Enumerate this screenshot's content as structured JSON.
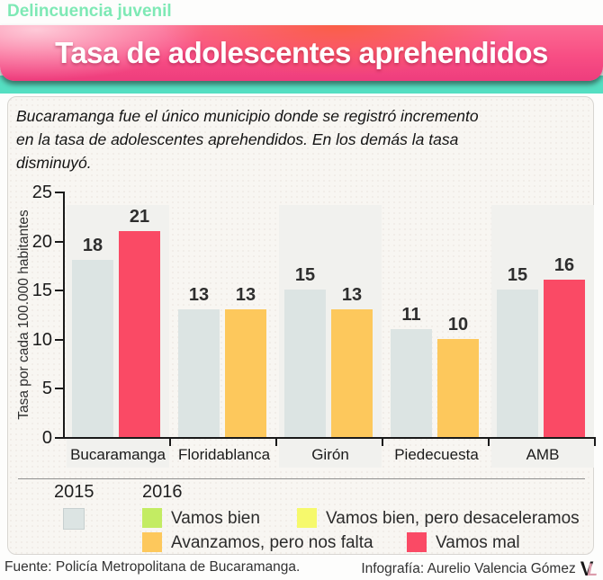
{
  "kicker": "Delincuencia juvenil",
  "title": "Tasa de adolescentes aprehendidos",
  "description_lines": [
    "Bucaramanga fue el único municipio donde se registró incremento",
    "en la tasa de adolescentes aprehendidos. En los demás la tasa",
    "disminuyó."
  ],
  "chart_data": {
    "type": "bar",
    "categories": [
      "Bucaramanga",
      "Floridablanca",
      "Girón",
      "Piedecuesta",
      "AMB"
    ],
    "series": [
      {
        "name": "2015",
        "values": [
          18,
          13,
          15,
          11,
          15
        ],
        "color": "#dce4e3"
      },
      {
        "name": "2016",
        "values": [
          21,
          13,
          13,
          10,
          16
        ],
        "colors": [
          "#fa4a65",
          "#fdc85c",
          "#fdc85c",
          "#fdc85c",
          "#fa4a65"
        ]
      }
    ],
    "ylabel": "Tasa por cada 100.000 habitantes",
    "yticks": [
      0,
      5,
      10,
      15,
      20,
      25
    ],
    "ylim": [
      0,
      25
    ],
    "grid": false,
    "highlight_panel_groups": [
      0,
      2,
      4
    ],
    "legend_position": "bottom"
  },
  "legend": {
    "year_2015": "2015",
    "year_2016": "2016",
    "items": [
      {
        "label": "",
        "color": "#dce4e3",
        "border": "#c7d0d0"
      },
      {
        "label": "Vamos bien",
        "color": "#c3ec63"
      },
      {
        "label": "Vamos bien, pero desaceleramos",
        "color": "#f6f96c"
      },
      {
        "label": "Avanzamos, pero nos falta",
        "color": "#fdc85c"
      },
      {
        "label": "Vamos mal",
        "color": "#fa4a65"
      }
    ]
  },
  "footer": {
    "source": "Fuente: Policía Metropolitana de Bucaramanga.",
    "credit": "Infografía: Aurelio Valencia Gómez",
    "logo_v": "V",
    "logo_l": "L"
  },
  "colors": {
    "kicker": "#7ee9b5",
    "banner_pink": "#f84e84",
    "teal_strip": "#55dfc2",
    "bar_2015": "#dce4e3",
    "bar_red": "#fa4a65",
    "bar_orange": "#fdc85c",
    "axis": "#1a1a1a",
    "box_bg": "#f8f6f2",
    "panel_bg": "#f1f1ee"
  }
}
